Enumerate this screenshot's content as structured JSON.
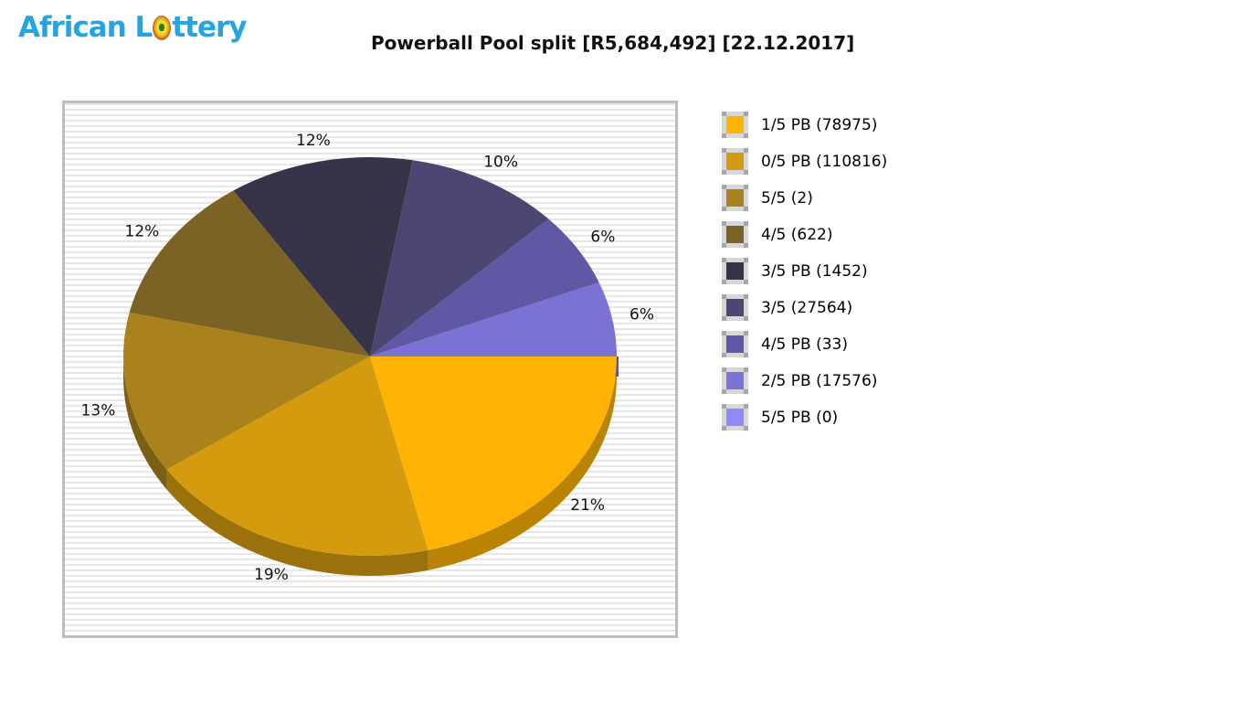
{
  "logo": {
    "part1": "African L",
    "part2": "ttery",
    "full_name": "African Lottery",
    "color": "#25a4e2",
    "ball_icon": "lottery-ball"
  },
  "title": "Powerball Pool split [R5,684,492] [22.12.2017]",
  "chart_data": {
    "type": "pie",
    "title": "Powerball Pool split [R5,684,492] [22.12.2017]",
    "pool_total": "R5,684,492",
    "draw_date": "22.12.2017",
    "effect": "3d",
    "label_format": "percent",
    "legend_position": "right",
    "start_angle_deg": 0,
    "direction": "clockwise",
    "series": [
      {
        "name": "1/5 PB",
        "count": 78975,
        "legend_label": "1/5 PB (78975)",
        "percent": 21,
        "color": "#ffb405"
      },
      {
        "name": "0/5 PB",
        "count": 110816,
        "legend_label": "0/5 PB (110816)",
        "percent": 19,
        "color": "#d49b0f"
      },
      {
        "name": "5/5",
        "count": 2,
        "legend_label": "5/5 (2)",
        "percent": 13,
        "color": "#a9821b"
      },
      {
        "name": "4/5",
        "count": 622,
        "legend_label": "4/5 (622)",
        "percent": 12,
        "color": "#7b6325"
      },
      {
        "name": "3/5 PB",
        "count": 1452,
        "legend_label": "3/5 PB (1452)",
        "percent": 12,
        "color": "#373349"
      },
      {
        "name": "3/5",
        "count": 27564,
        "legend_label": "3/5 (27564)",
        "percent": 10,
        "color": "#4c4673"
      },
      {
        "name": "4/5 PB",
        "count": 33,
        "legend_label": "4/5 PB (33)",
        "percent": 6,
        "color": "#5f58a5"
      },
      {
        "name": "2/5 PB",
        "count": 17576,
        "legend_label": "2/5 PB (17576)",
        "percent": 6,
        "color": "#7a72d5"
      },
      {
        "name": "5/5 PB",
        "count": 0,
        "legend_label": "5/5 PB (0)",
        "percent": 0,
        "color": "#9089f9"
      }
    ]
  }
}
